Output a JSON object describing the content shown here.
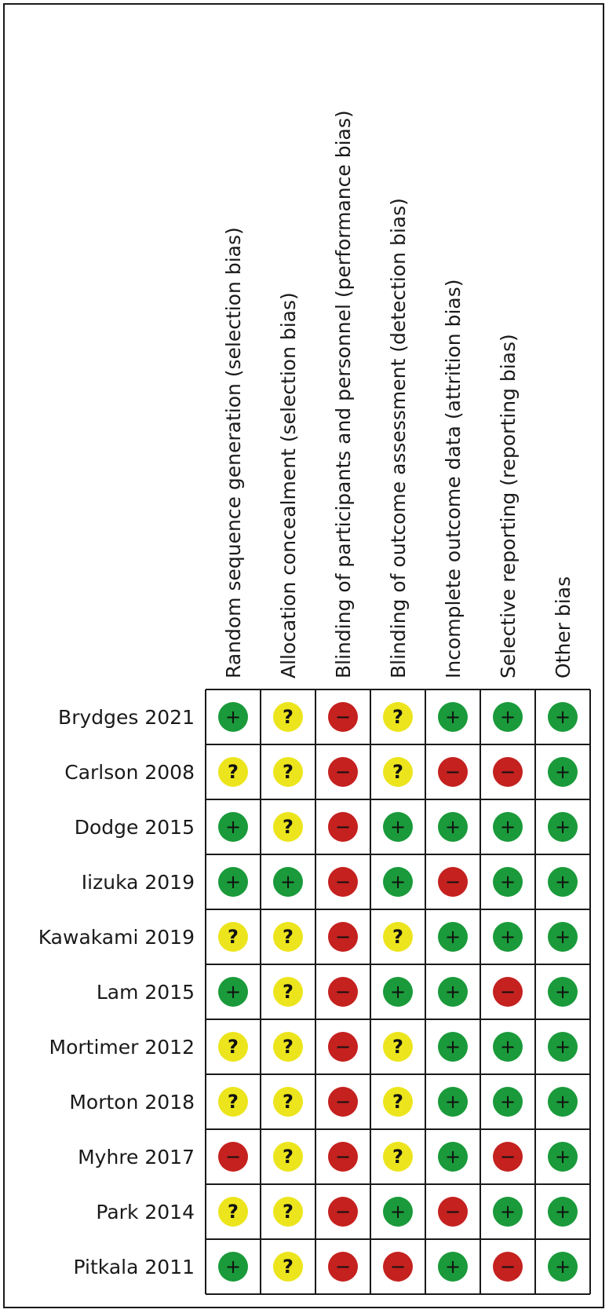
{
  "chart_data": {
    "type": "table",
    "domains": [
      "Random sequence generation (selection bias)",
      "Allocation concealment (selection bias)",
      "Blinding of participants and personnel (performance bias)",
      "Blinding of outcome assessment (detection bias)",
      "Incomplete outcome data (attrition bias)",
      "Selective reporting (reporting bias)",
      "Other bias"
    ],
    "studies": [
      "Brydges 2021",
      "Carlson 2008",
      "Dodge 2015",
      "Iizuka 2019",
      "Kawakami 2019",
      "Lam 2015",
      "Mortimer 2012",
      "Morton 2018",
      "Myhre 2017",
      "Park 2014",
      "Pitkala 2011"
    ],
    "judgements": [
      [
        "low",
        "unclear",
        "high",
        "unclear",
        "low",
        "low",
        "low"
      ],
      [
        "unclear",
        "unclear",
        "high",
        "unclear",
        "high",
        "high",
        "low"
      ],
      [
        "low",
        "unclear",
        "high",
        "low",
        "low",
        "low",
        "low"
      ],
      [
        "low",
        "low",
        "high",
        "low",
        "high",
        "low",
        "low"
      ],
      [
        "unclear",
        "unclear",
        "high",
        "unclear",
        "low",
        "low",
        "low"
      ],
      [
        "low",
        "unclear",
        "high",
        "low",
        "low",
        "high",
        "low"
      ],
      [
        "unclear",
        "unclear",
        "high",
        "unclear",
        "low",
        "low",
        "low"
      ],
      [
        "unclear",
        "unclear",
        "high",
        "unclear",
        "low",
        "low",
        "low"
      ],
      [
        "high",
        "unclear",
        "high",
        "unclear",
        "low",
        "high",
        "low"
      ],
      [
        "unclear",
        "unclear",
        "high",
        "low",
        "high",
        "low",
        "low"
      ],
      [
        "low",
        "unclear",
        "high",
        "high",
        "low",
        "high",
        "low"
      ]
    ],
    "symbols": {
      "low": "+",
      "unclear": "?",
      "high": "−"
    },
    "colors": {
      "low": "#1a9a3a",
      "unclear": "#ece51d",
      "high": "#c4211f",
      "grid": "#1a1a1a"
    }
  }
}
